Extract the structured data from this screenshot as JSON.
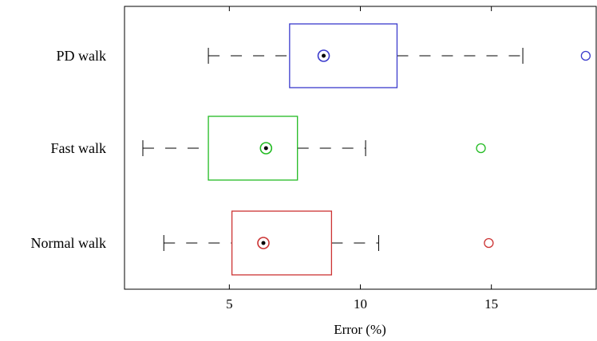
{
  "chart_data": {
    "type": "boxplot",
    "orientation": "horizontal",
    "title": "",
    "xlabel": "Error (%)",
    "ylabel": "",
    "xlim": [
      1.0,
      19.0
    ],
    "xticks": [
      5,
      10,
      15
    ],
    "grid": false,
    "series": [
      {
        "name": "PD walk",
        "color": "#3a3acc",
        "whisker_low": 4.2,
        "q1": 7.3,
        "median": 8.6,
        "q3": 11.4,
        "whisker_high": 16.2,
        "outliers": [
          18.6
        ]
      },
      {
        "name": "Fast walk",
        "color": "#22bb22",
        "whisker_low": 1.7,
        "q1": 4.2,
        "median": 6.4,
        "q3": 7.6,
        "whisker_high": 10.2,
        "outliers": [
          14.6
        ]
      },
      {
        "name": "Normal walk",
        "color": "#cc3333",
        "whisker_low": 2.5,
        "q1": 5.1,
        "median": 6.3,
        "q3": 8.9,
        "whisker_high": 10.7,
        "outliers": [
          14.9
        ]
      }
    ]
  }
}
